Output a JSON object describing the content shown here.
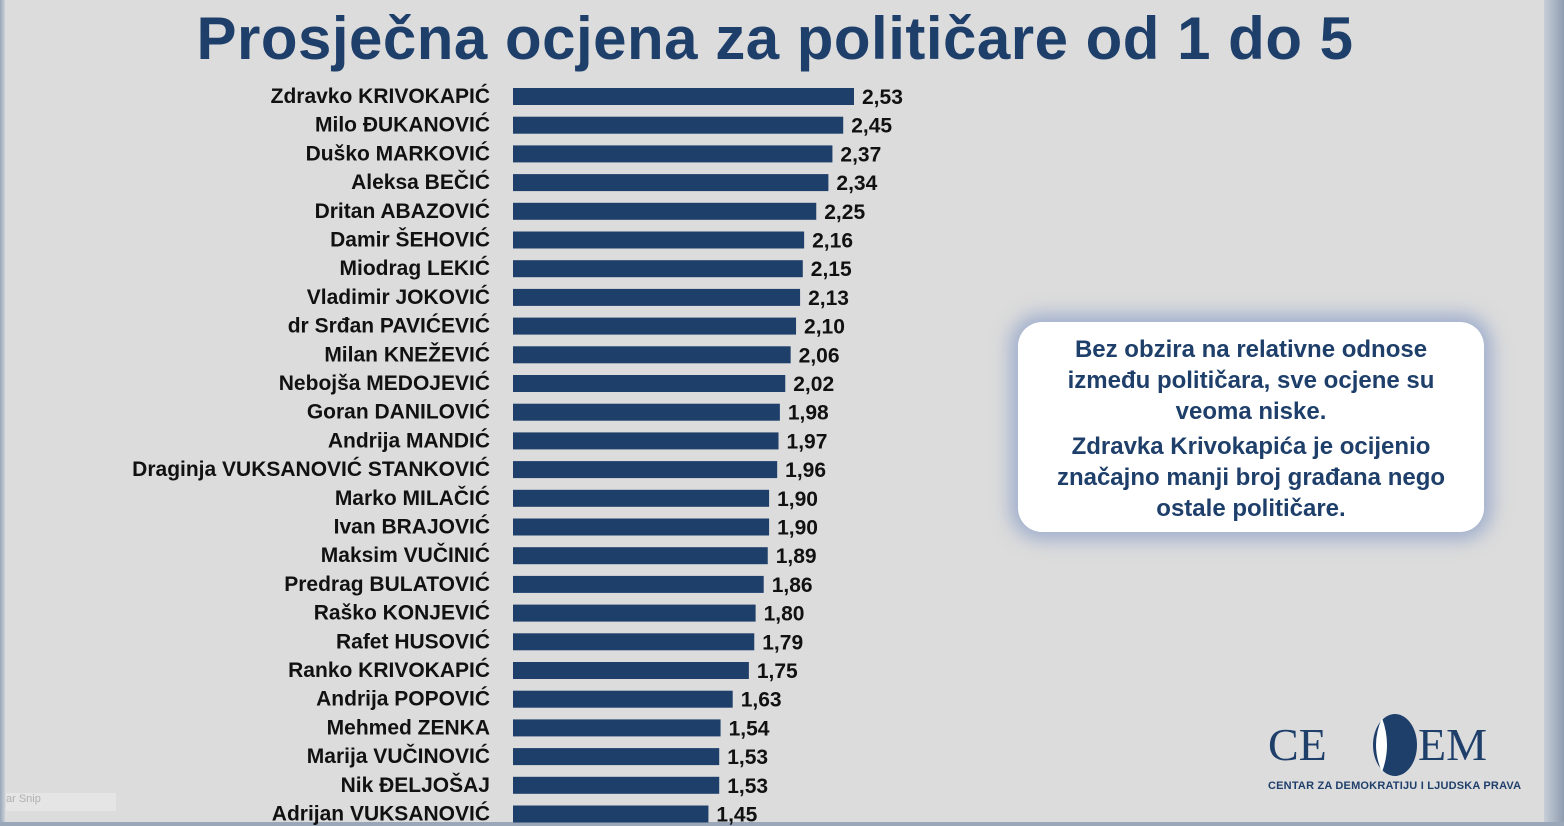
{
  "chart_data": {
    "type": "bar",
    "orientation": "horizontal",
    "title": "Prosječna ocjena za političare od 1 do 5",
    "categories": [
      "Zdravko KRIVOKAPIĆ",
      "Milo ĐUKANOVIĆ",
      "Duško MARKOVIĆ",
      "Aleksa BEČIĆ",
      "Dritan ABAZOVIĆ",
      "Damir ŠEHOVIĆ",
      "Miodrag LEKIĆ",
      "Vladimir JOKOVIĆ",
      "dr Srđan PAVIĆEVIĆ",
      "Milan KNEŽEVIĆ",
      "Nebojša MEDOJEVIĆ",
      "Goran DANILOVIĆ",
      "Andrija MANDIĆ",
      "Draginja VUKSANOVIĆ STANKOVIĆ",
      "Marko MILAČIĆ",
      "Ivan BRAJOVIĆ",
      "Maksim VUČINIĆ",
      "Predrag BULATOVIĆ",
      "Raško KONJEVIĆ",
      "Rafet HUSOVIĆ",
      "Ranko KRIVOKAPIĆ",
      "Andrija POPOVIĆ",
      "Mehmed ZENKA",
      "Marija VUČINOVIĆ",
      "Nik ĐELJOŠAJ",
      "Adrijan VUKSANOVIĆ"
    ],
    "values": [
      2.53,
      2.45,
      2.37,
      2.34,
      2.25,
      2.16,
      2.15,
      2.13,
      2.1,
      2.06,
      2.02,
      1.98,
      1.97,
      1.96,
      1.9,
      1.9,
      1.89,
      1.86,
      1.8,
      1.79,
      1.75,
      1.63,
      1.54,
      1.53,
      1.53,
      1.45
    ],
    "value_labels": [
      "2,53",
      "2,45",
      "2,37",
      "2,34",
      "2,25",
      "2,16",
      "2,15",
      "2,13",
      "2,10",
      "2,06",
      "2,02",
      "1,98",
      "1,97",
      "1,96",
      "1,90",
      "1,90",
      "1,89",
      "1,86",
      "1,80",
      "1,79",
      "1,75",
      "1,63",
      "1,54",
      "1,53",
      "1,53",
      "1,45"
    ],
    "xlim": [
      0,
      2.53
    ],
    "grid": false,
    "bar_color": "#1f3f6b"
  },
  "note": {
    "paragraph1": "Bez obzira na relativne odnose između političara, sve ocjene su veoma niske.",
    "paragraph2": "Zdravka Krivokapića je ocijenio značajno manji broj građana nego ostale političare."
  },
  "logo": {
    "left": "CE",
    "right": "EM",
    "subtitle": "CENTAR ZA DEMOKRATIJU I LJUDSKA PRAVA"
  },
  "watermark": "ar Snip"
}
